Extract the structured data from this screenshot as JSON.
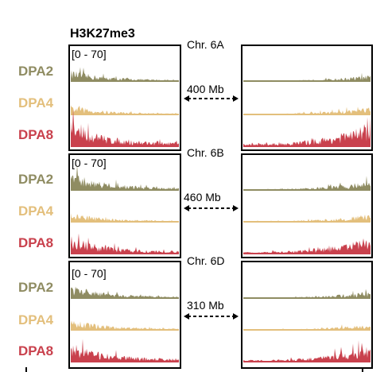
{
  "title": "H3K27me3",
  "range_label": "[0 - 70]",
  "samples": [
    {
      "name": "DPA2",
      "color": "#8f8c62"
    },
    {
      "name": "DPA4",
      "color": "#e3bf7c"
    },
    {
      "name": "DPA8",
      "color": "#c9414d"
    }
  ],
  "chromosomes": [
    {
      "name": "Chr. 6A",
      "distance": "400 Mb"
    },
    {
      "name": "Chr. 6B",
      "distance": "460 Mb"
    },
    {
      "name": "Chr. 6D",
      "distance": "310 Mb"
    }
  ],
  "chart_data": {
    "type": "area",
    "title": "H3K27me3",
    "ylim": [
      0,
      70
    ],
    "note_profile_shape": "left panels: signal high near chromosome start and decaying; right panels: low, rising toward chromosome end",
    "panels": [
      {
        "chromosome": "Chr. 6A",
        "gap": "400 Mb",
        "series": [
          {
            "name": "DPA2",
            "left_peak": 14,
            "right_peak": 8
          },
          {
            "name": "DPA4",
            "left_peak": 12,
            "right_peak": 10
          },
          {
            "name": "DPA8",
            "left_peak": 30,
            "right_peak": 28
          }
        ]
      },
      {
        "chromosome": "Chr. 6B",
        "gap": "460 Mb",
        "series": [
          {
            "name": "DPA2",
            "left_peak": 22,
            "right_peak": 12
          },
          {
            "name": "DPA4",
            "left_peak": 12,
            "right_peak": 10
          },
          {
            "name": "DPA8",
            "left_peak": 22,
            "right_peak": 20
          }
        ]
      },
      {
        "chromosome": "Chr. 6D",
        "gap": "310 Mb",
        "series": [
          {
            "name": "DPA2",
            "left_peak": 16,
            "right_peak": 9
          },
          {
            "name": "DPA4",
            "left_peak": 14,
            "right_peak": 8
          },
          {
            "name": "DPA8",
            "left_peak": 24,
            "right_peak": 20
          }
        ]
      }
    ]
  }
}
